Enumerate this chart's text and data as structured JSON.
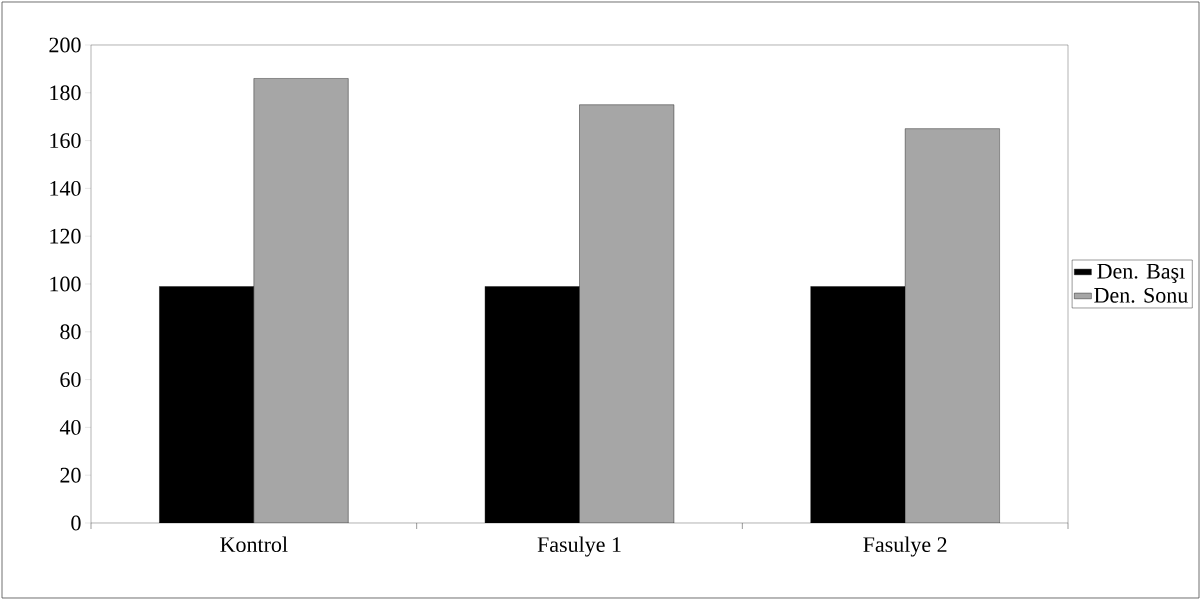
{
  "chart_data": {
    "type": "bar",
    "categories": [
      "Kontrol",
      "Fasulye 1",
      "Fasulye 2"
    ],
    "series": [
      {
        "name": "Den. Başı",
        "color": "#000000",
        "values": [
          99,
          99,
          99
        ]
      },
      {
        "name": "Den. Sonu",
        "color": "#a6a6a6",
        "values": [
          186,
          175,
          165
        ]
      }
    ],
    "ylim": [
      0,
      200
    ],
    "yticks": [
      0,
      20,
      40,
      60,
      80,
      100,
      120,
      140,
      160,
      180,
      200
    ],
    "grid": false,
    "legend": "right"
  }
}
